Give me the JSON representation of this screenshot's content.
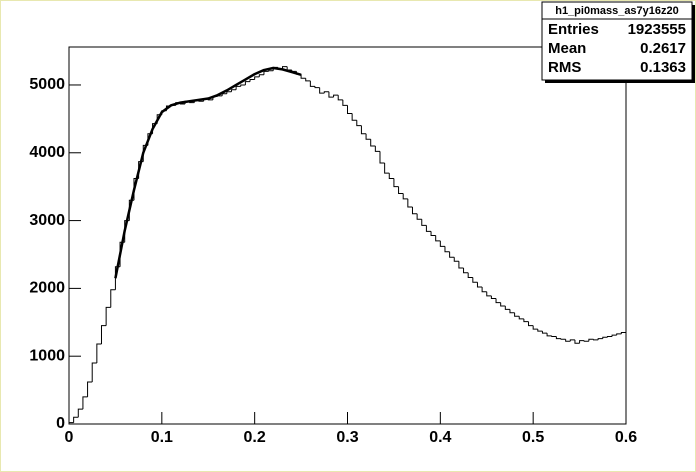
{
  "chart_data": {
    "type": "histogram",
    "bins": [
      0,
      0.005,
      0.01,
      0.015,
      0.02,
      0.025,
      0.03,
      0.035,
      0.04,
      0.045,
      0.05,
      0.055,
      0.06,
      0.065,
      0.07,
      0.075,
      0.08,
      0.085,
      0.09,
      0.095,
      0.1,
      0.105,
      0.11,
      0.115,
      0.12,
      0.125,
      0.13,
      0.135,
      0.14,
      0.145,
      0.15,
      0.155,
      0.16,
      0.165,
      0.17,
      0.175,
      0.18,
      0.185,
      0.19,
      0.195,
      0.2,
      0.205,
      0.21,
      0.215,
      0.22,
      0.225,
      0.23,
      0.235,
      0.24,
      0.245,
      0.25,
      0.255,
      0.26,
      0.265,
      0.27,
      0.275,
      0.28,
      0.285,
      0.29,
      0.295,
      0.3,
      0.305,
      0.31,
      0.315,
      0.32,
      0.325,
      0.33,
      0.335,
      0.34,
      0.345,
      0.35,
      0.355,
      0.36,
      0.365,
      0.37,
      0.375,
      0.38,
      0.385,
      0.39,
      0.395,
      0.4,
      0.405,
      0.41,
      0.415,
      0.42,
      0.425,
      0.43,
      0.435,
      0.44,
      0.445,
      0.45,
      0.455,
      0.46,
      0.465,
      0.47,
      0.475,
      0.48,
      0.485,
      0.49,
      0.495,
      0.5,
      0.505,
      0.51,
      0.515,
      0.52,
      0.525,
      0.53,
      0.535,
      0.54,
      0.545,
      0.55,
      0.555,
      0.56,
      0.565,
      0.57,
      0.575,
      0.58,
      0.585,
      0.59,
      0.595,
      0.6
    ],
    "values": [
      20,
      100,
      220,
      400,
      620,
      900,
      1180,
      1450,
      1720,
      1980,
      2320,
      2680,
      3000,
      3300,
      3620,
      3870,
      4110,
      4280,
      4430,
      4560,
      4620,
      4690,
      4700,
      4740,
      4720,
      4760,
      4740,
      4770,
      4760,
      4790,
      4780,
      4830,
      4840,
      4870,
      4900,
      4930,
      4980,
      5000,
      5050,
      5080,
      5120,
      5150,
      5200,
      5210,
      5260,
      5240,
      5270,
      5220,
      5200,
      5160,
      5100,
      5060,
      4980,
      4960,
      4880,
      4900,
      4820,
      4850,
      4780,
      4700,
      4580,
      4480,
      4400,
      4280,
      4200,
      4100,
      4020,
      3850,
      3700,
      3620,
      3500,
      3400,
      3320,
      3200,
      3100,
      3020,
      2930,
      2840,
      2780,
      2700,
      2620,
      2540,
      2460,
      2400,
      2300,
      2230,
      2160,
      2090,
      2020,
      1950,
      1890,
      1850,
      1790,
      1740,
      1690,
      1640,
      1590,
      1550,
      1510,
      1450,
      1400,
      1370,
      1340,
      1300,
      1290,
      1260,
      1250,
      1220,
      1240,
      1190,
      1230,
      1220,
      1250,
      1240,
      1260,
      1280,
      1290,
      1310,
      1330,
      1350
    ],
    "color": "#000000",
    "fit": {
      "x": [
        0.05,
        0.06,
        0.07,
        0.08,
        0.09,
        0.1,
        0.11,
        0.12,
        0.13,
        0.14,
        0.15,
        0.16,
        0.17,
        0.18,
        0.19,
        0.2,
        0.21,
        0.22,
        0.23,
        0.24,
        0.25
      ],
      "values": [
        2150,
        2850,
        3450,
        4000,
        4350,
        4600,
        4700,
        4740,
        4760,
        4780,
        4800,
        4850,
        4920,
        5000,
        5080,
        5160,
        5220,
        5250,
        5230,
        5190,
        5150
      ],
      "color": "#000000"
    },
    "xlim": [
      0,
      0.6
    ],
    "xticks": [
      0,
      0.1,
      0.2,
      0.3,
      0.4,
      0.5,
      0.6
    ],
    "ylim": [
      0,
      5560
    ],
    "yticks": [
      0,
      1000,
      2000,
      3000,
      4000,
      5000
    ],
    "stats": {
      "title": "h1_pi0mass_as7y16z20",
      "rows": [
        [
          "Entries",
          1923555
        ],
        [
          "Mean",
          0.2617
        ],
        [
          "RMS",
          0.1363
        ]
      ]
    }
  }
}
